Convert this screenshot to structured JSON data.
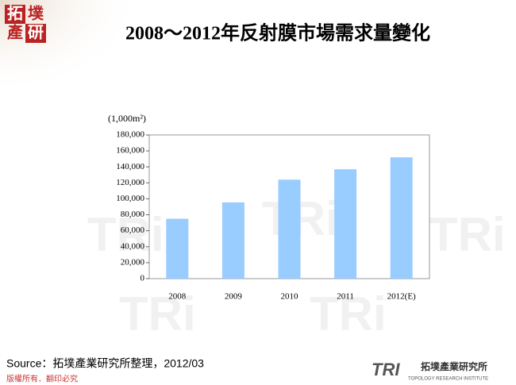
{
  "brand": {
    "logo": [
      "拓",
      "墣",
      "產",
      "研"
    ],
    "copyright": "版權所有．翻印必究",
    "footer_logo": "TRI",
    "footer_name": "拓墣產業研究所",
    "footer_english": "TOPOLOGY RESEARCH INSTITUTE"
  },
  "source": "Source：拓墣產業研究所整理，2012/03",
  "chart_data": {
    "type": "bar",
    "title": "2008～2012年反射膜市場需求量變化",
    "y_unit": "(1,000m²)",
    "categories": [
      "2008",
      "2009",
      "2010",
      "2011",
      "2012(E)"
    ],
    "values": [
      75000,
      95500,
      124000,
      137000,
      152000
    ],
    "color": "#99ccff",
    "ylim": [
      0,
      180000
    ],
    "yticks": [
      0,
      {
        "value": 20000,
        "label": "20,000"
      },
      {
        "value": 40000,
        "label": "40,000"
      },
      {
        "value": 60000,
        "label": "60,000"
      },
      {
        "value": 80000,
        "label": "80,000"
      },
      {
        "value": 100000,
        "label": "100,000"
      },
      {
        "value": 120000,
        "label": "120,000"
      },
      {
        "value": 140000,
        "label": "140,000"
      },
      {
        "value": 160000,
        "label": "160,000"
      },
      {
        "value": 180000,
        "label": "180,000"
      }
    ],
    "grid": false
  }
}
